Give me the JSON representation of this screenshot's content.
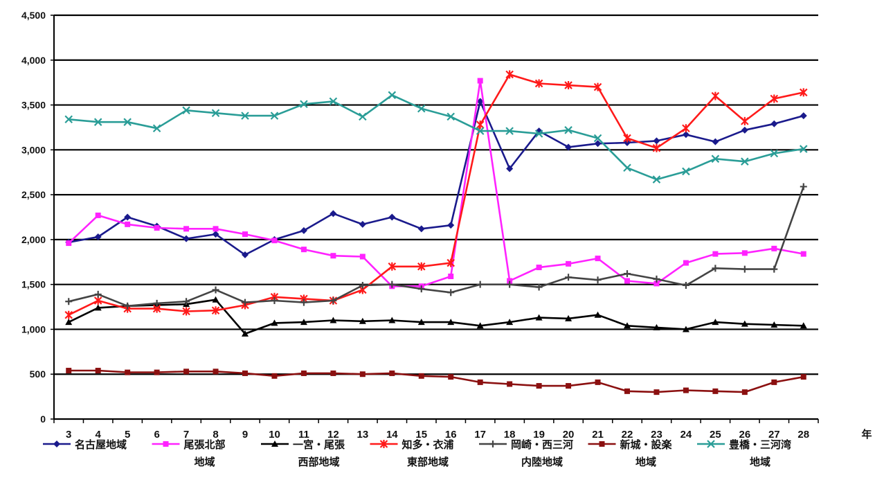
{
  "chart_data": {
    "type": "line",
    "x": [
      3,
      4,
      5,
      6,
      7,
      8,
      9,
      10,
      11,
      12,
      13,
      14,
      15,
      16,
      17,
      18,
      19,
      20,
      21,
      22,
      23,
      24,
      25,
      26,
      27,
      28
    ],
    "x_tick_labels": [
      "3",
      "4",
      "5",
      "6",
      "7",
      "8",
      "9",
      "10",
      "11",
      "12",
      "13",
      "14",
      "15",
      "16",
      "17",
      "18",
      "19",
      "20",
      "21",
      "22",
      "23",
      "24",
      "25",
      "26",
      "27",
      "28"
    ],
    "xunit": "年",
    "ylim": [
      0,
      4500
    ],
    "y_ticks": [
      0,
      500,
      1000,
      1500,
      2000,
      2500,
      3000,
      3500,
      4000,
      4500
    ],
    "y_tick_labels": [
      "0",
      "500",
      "1,000",
      "1,500",
      "2,000",
      "2,500",
      "3,000",
      "3,500",
      "4,000",
      "4,500"
    ],
    "grid": "horizontal",
    "legend_position": "bottom",
    "series": [
      {
        "key": "s1",
        "legend_lines": [
          "名古屋地域",
          ""
        ],
        "color": "#1a1a8c",
        "marker": "diamond",
        "values": [
          1970,
          2030,
          2250,
          2150,
          2010,
          2060,
          1830,
          2000,
          2100,
          2290,
          2170,
          2250,
          2120,
          2160,
          3540,
          2790,
          3210,
          3030,
          3070,
          3080,
          3100,
          3170,
          3090,
          3220,
          3290,
          3380
        ]
      },
      {
        "key": "s2",
        "legend_lines": [
          "尾張北部",
          "地域"
        ],
        "color": "#ff22ff",
        "marker": "square",
        "values": [
          1960,
          2270,
          2170,
          2130,
          2120,
          2120,
          2060,
          1990,
          1890,
          1820,
          1810,
          1480,
          1480,
          1590,
          3770,
          1540,
          1690,
          1730,
          1790,
          1540,
          1510,
          1740,
          1840,
          1850,
          1900,
          1840
        ]
      },
      {
        "key": "s3",
        "legend_lines": [
          "一宮・尾張",
          "西部地域"
        ],
        "color": "#000000",
        "marker": "triangle",
        "values": [
          1080,
          1240,
          1260,
          1270,
          1280,
          1330,
          950,
          1070,
          1080,
          1100,
          1090,
          1100,
          1080,
          1080,
          1040,
          1080,
          1130,
          1120,
          1160,
          1040,
          1020,
          1000,
          1080,
          1060,
          1050,
          1040
        ]
      },
      {
        "key": "s4",
        "legend_lines": [
          "知多・衣浦",
          "東部地域"
        ],
        "color": "#ff1a1a",
        "marker": "star",
        "values": [
          1160,
          1320,
          1230,
          1230,
          1200,
          1210,
          1270,
          1360,
          1340,
          1320,
          1440,
          1700,
          1700,
          1740,
          3280,
          3840,
          3740,
          3720,
          3700,
          3130,
          3020,
          3240,
          3600,
          3320,
          3570,
          3640
        ]
      },
      {
        "key": "s5",
        "legend_lines": [
          "岡崎・西三河",
          "内陸地域"
        ],
        "color": "#444444",
        "marker": "plus",
        "values": [
          1310,
          1390,
          1260,
          1290,
          1310,
          1440,
          1300,
          1320,
          1300,
          1320,
          1490,
          1500,
          1450,
          1410,
          1500,
          1500,
          1470,
          1580,
          1550,
          1620,
          1560,
          1490,
          1680,
          1670,
          1670,
          2590
        ]
      },
      {
        "key": "s6",
        "legend_lines": [
          "新城・設楽",
          "地域"
        ],
        "color": "#8b1010",
        "marker": "square",
        "values": [
          540,
          540,
          520,
          520,
          530,
          530,
          510,
          480,
          510,
          510,
          500,
          510,
          480,
          470,
          410,
          390,
          370,
          370,
          410,
          310,
          300,
          320,
          310,
          300,
          410,
          470
        ]
      },
      {
        "key": "s7",
        "legend_lines": [
          "豊橋・三河湾",
          "地域"
        ],
        "color": "#2a9d97",
        "marker": "x",
        "values": [
          3340,
          3310,
          3310,
          3240,
          3440,
          3410,
          3380,
          3380,
          3510,
          3540,
          3370,
          3610,
          3460,
          3370,
          3210,
          3210,
          3180,
          3220,
          3130,
          2800,
          2670,
          2760,
          2900,
          2870,
          2960,
          3010
        ]
      }
    ]
  }
}
